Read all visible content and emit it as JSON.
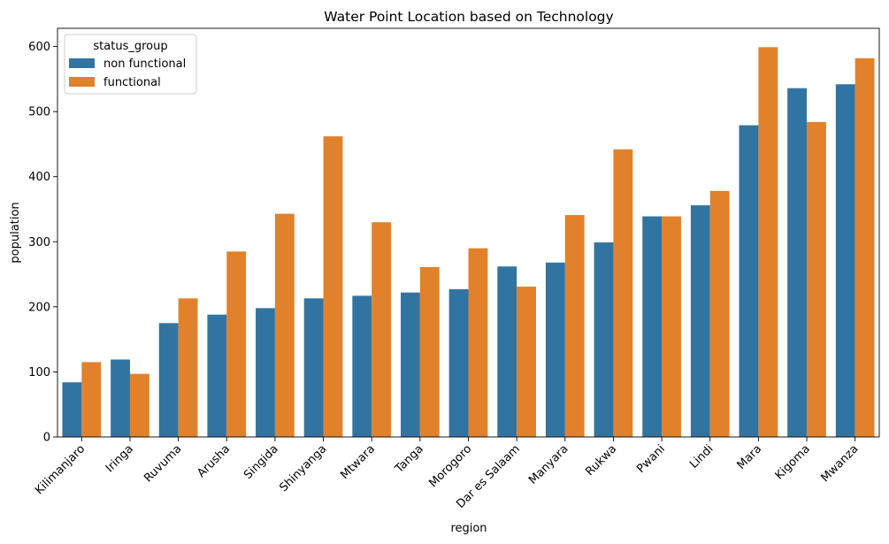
{
  "chart_data": {
    "type": "bar",
    "title": "Water Point Location based on Technology",
    "xlabel": "region",
    "ylabel": "population",
    "ylim": [
      0,
      628
    ],
    "yticks": [
      0,
      100,
      200,
      300,
      400,
      500,
      600
    ],
    "grid": false,
    "legend": {
      "title": "status_group",
      "placement": "top-left"
    },
    "categories": [
      "Kilimanjaro",
      "Iringa",
      "Ruvuma",
      "Arusha",
      "Singida",
      "Shinyanga",
      "Mtwara",
      "Tanga",
      "Morogoro",
      "Dar es Salaam",
      "Manyara",
      "Rukwa",
      "Pwani",
      "Lindi",
      "Mara",
      "Kigoma",
      "Mwanza"
    ],
    "series": [
      {
        "name": "non functional",
        "color": "#3274a1",
        "values": [
          84,
          119,
          175,
          188,
          198,
          213,
          217,
          222,
          227,
          262,
          268,
          299,
          339,
          356,
          479,
          536,
          542
        ]
      },
      {
        "name": "functional",
        "color": "#e1812c",
        "values": [
          115,
          97,
          213,
          285,
          343,
          462,
          330,
          261,
          290,
          231,
          341,
          442,
          339,
          378,
          599,
          484,
          582
        ]
      }
    ]
  }
}
